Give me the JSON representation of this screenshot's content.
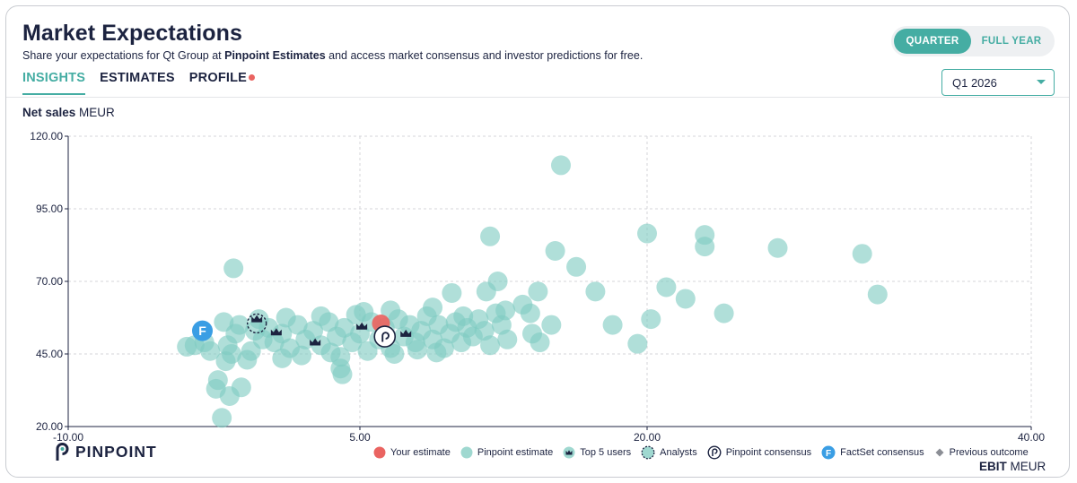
{
  "header": {
    "title": "Market Expectations",
    "subtitle_pre": "Share your expectations for Qt Group at ",
    "subtitle_bold": "Pinpoint Estimates",
    "subtitle_post": " and access market consensus and investor predictions for free."
  },
  "tabs": [
    {
      "label": "INSIGHTS",
      "active": true
    },
    {
      "label": "ESTIMATES",
      "active": false
    },
    {
      "label": "PROFILE",
      "active": false,
      "notification_dot": true
    }
  ],
  "period_toggle": {
    "options": [
      "QUARTER",
      "FULL YEAR"
    ],
    "selected": "QUARTER"
  },
  "period_select": {
    "value": "Q1 2026"
  },
  "colors": {
    "accent": "#45ada3",
    "estimate": "#7fcbc1",
    "your_estimate": "#ea6461",
    "factset": "#3a9ee4",
    "navy": "#1c2340",
    "grid": "#d4d6da"
  },
  "axes": {
    "y_label_bold": "Net sales",
    "y_label_unit": " MEUR",
    "x_label_bold": "EBIT",
    "x_label_unit": " MEUR"
  },
  "brand": {
    "name": "PINPOINT"
  },
  "legend": [
    {
      "label": "Your estimate",
      "icon": "red-dot-icon"
    },
    {
      "label": "Pinpoint estimate",
      "icon": "teal-dot-icon"
    },
    {
      "label": "Top 5 users",
      "icon": "crown-icon"
    },
    {
      "label": "Analysts",
      "icon": "dashed-circle-icon"
    },
    {
      "label": "Pinpoint consensus",
      "icon": "pinpoint-p-icon"
    },
    {
      "label": "FactSet consensus",
      "icon": "factset-f-icon"
    },
    {
      "label": "Previous outcome",
      "icon": "diamond-icon"
    }
  ],
  "chart_data": {
    "type": "scatter",
    "xlabel": "EBIT MEUR",
    "ylabel": "Net sales MEUR",
    "x_ticks": [
      -10,
      5,
      20,
      40
    ],
    "x_tick_labels": [
      "-10.00",
      "5.00",
      "20.00",
      "40.00"
    ],
    "y_ticks": [
      20,
      45,
      70,
      95,
      120
    ],
    "y_tick_labels": [
      "20.00",
      "45.00",
      "70.00",
      "95.00",
      "120.00"
    ],
    "xlim": [
      -10,
      40
    ],
    "ylim": [
      20,
      120
    ],
    "grid": true,
    "series": [
      {
        "name": "Pinpoint estimate",
        "points": [
          [
            -3.9,
            47.5
          ],
          [
            -3.5,
            48.0
          ],
          [
            -3.0,
            49.0
          ],
          [
            -2.7,
            46.0
          ],
          [
            -2.0,
            56.0
          ],
          [
            -1.8,
            48.0
          ],
          [
            -1.6,
            45.0
          ],
          [
            -1.4,
            52.0
          ],
          [
            -1.2,
            55.0
          ],
          [
            -0.6,
            46.0
          ],
          [
            -0.4,
            53.0
          ],
          [
            0.0,
            50.0
          ],
          [
            0.3,
            54.0
          ],
          [
            0.6,
            49.0
          ],
          [
            1.0,
            52.0
          ],
          [
            1.4,
            47.0
          ],
          [
            1.8,
            55.0
          ],
          [
            2.2,
            50.0
          ],
          [
            2.6,
            53.0
          ],
          [
            3.0,
            48.0
          ],
          [
            3.4,
            56.0
          ],
          [
            3.8,
            51.0
          ],
          [
            4.2,
            54.0
          ],
          [
            4.6,
            49.0
          ],
          [
            5.0,
            52.0
          ],
          [
            5.2,
            59.5
          ],
          [
            5.6,
            56.0
          ],
          [
            6.0,
            50.0
          ],
          [
            6.3,
            54.0
          ],
          [
            6.6,
            47.0
          ],
          [
            7.0,
            57.0
          ],
          [
            7.3,
            51.0
          ],
          [
            7.6,
            55.0
          ],
          [
            7.9,
            49.0
          ],
          [
            8.2,
            53.0
          ],
          [
            8.5,
            58.0
          ],
          [
            8.8,
            50.0
          ],
          [
            9.1,
            55.0
          ],
          [
            9.4,
            47.0
          ],
          [
            9.7,
            52.0
          ],
          [
            10.0,
            56.0
          ],
          [
            10.3,
            49.0
          ],
          [
            10.6,
            54.0
          ],
          [
            10.9,
            51.0
          ],
          [
            11.2,
            57.0
          ],
          [
            11.5,
            53.0
          ],
          [
            11.8,
            48.0
          ],
          [
            12.1,
            59.0
          ],
          [
            12.4,
            55.0
          ],
          [
            12.7,
            50.0
          ],
          [
            5.4,
            46.0
          ],
          [
            6.8,
            45.0
          ],
          [
            8.0,
            46.5
          ],
          [
            9.0,
            45.5
          ],
          [
            4.0,
            44.0
          ],
          [
            3.5,
            45.5
          ],
          [
            2.0,
            44.5
          ],
          [
            1.0,
            43.5
          ],
          [
            -0.8,
            43.0
          ],
          [
            -1.9,
            42.5
          ],
          [
            -0.2,
            57.0
          ],
          [
            1.2,
            57.5
          ],
          [
            3.0,
            58.0
          ],
          [
            4.8,
            58.5
          ],
          [
            6.6,
            60.0
          ],
          [
            8.8,
            61.0
          ],
          [
            9.8,
            66.0
          ],
          [
            10.4,
            58.0
          ],
          [
            11.6,
            66.5
          ],
          [
            12.2,
            70.0
          ],
          [
            12.6,
            60.0
          ],
          [
            13.5,
            62.0
          ],
          [
            13.9,
            59.0
          ],
          [
            14.3,
            66.5
          ],
          [
            14.0,
            52.0
          ],
          [
            14.4,
            49.0
          ],
          [
            15.0,
            55.0
          ],
          [
            15.2,
            80.5
          ],
          [
            16.3,
            75.0
          ],
          [
            17.3,
            66.5
          ],
          [
            15.5,
            110.0
          ],
          [
            11.8,
            85.5
          ],
          [
            -1.5,
            74.5
          ],
          [
            4.0,
            40.0
          ],
          [
            4.1,
            38.0
          ],
          [
            -2.4,
            33.0
          ],
          [
            -1.7,
            30.5
          ],
          [
            -1.1,
            33.5
          ],
          [
            -2.1,
            23.0
          ],
          [
            -2.3,
            36.0
          ],
          [
            18.2,
            55.0
          ],
          [
            19.5,
            48.5
          ],
          [
            20.0,
            86.5
          ],
          [
            20.2,
            57.0
          ],
          [
            21.0,
            68.0
          ],
          [
            22.0,
            64.0
          ],
          [
            23.0,
            86.0
          ],
          [
            23.0,
            82.0
          ],
          [
            24.0,
            59.0
          ],
          [
            26.8,
            81.5
          ],
          [
            31.2,
            79.5
          ],
          [
            32.0,
            65.5
          ]
        ]
      }
    ],
    "markers": {
      "your_estimate": [
        6.1,
        55.5
      ],
      "pinpoint_consensus": [
        6.3,
        51.0
      ],
      "factset_consensus": [
        -3.1,
        53.0
      ],
      "analysts": [
        -0.3,
        55.5
      ],
      "top5_users": [
        [
          -0.3,
          57.0
        ],
        [
          0.7,
          52.5
        ],
        [
          2.7,
          49.0
        ],
        [
          5.1,
          54.5
        ],
        [
          7.4,
          52.0
        ]
      ],
      "previous_outcome": null
    }
  }
}
